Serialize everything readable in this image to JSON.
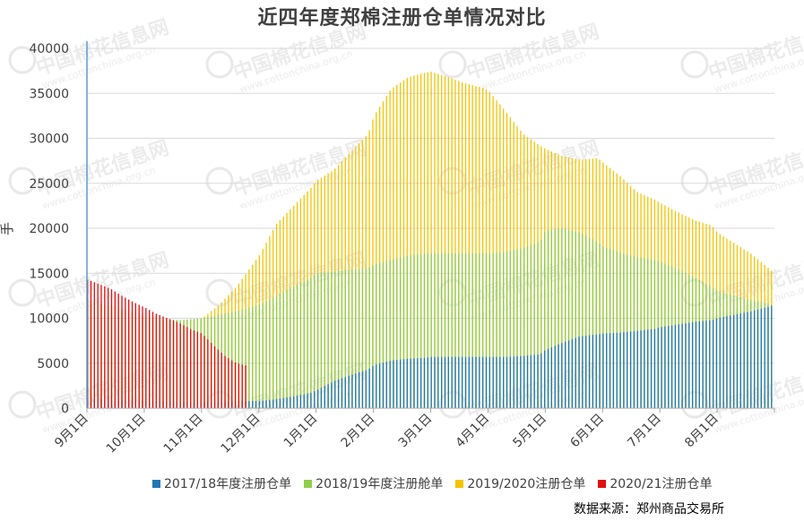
{
  "chart_data": {
    "type": "bar",
    "title": "近四年度郑棉注册仓单情况对比",
    "ylabel": "手",
    "xlabel": "",
    "ylim": [
      0,
      40000
    ],
    "yticks": [
      0,
      5000,
      10000,
      15000,
      20000,
      25000,
      30000,
      35000,
      40000
    ],
    "x_tick_labels": [
      "9月1日",
      "10月1日",
      "11月1日",
      "12月1日",
      "1月1日",
      "2月1日",
      "3月1日",
      "4月1日",
      "5月1日",
      "6月1日",
      "7月1日",
      "8月1日"
    ],
    "grid": true,
    "legend_position": "bottom",
    "source": "数据来源：郑州商品交易所",
    "colors": {
      "2017/18年度注册仓单": "#1f77b4",
      "2018/19年度注册舱单": "#8fce4a",
      "2019/2020注册仓单": "#f5c400",
      "2020/21注册仓单": "#e01010"
    },
    "x_unit": "month index (0 = Sep 1, 12 = next Sep 1)",
    "series": [
      {
        "name": "2017/18年度注册仓单",
        "points": [
          [
            0.0,
            1000
          ],
          [
            0.5,
            900
          ],
          [
            1.0,
            800
          ],
          [
            1.3,
            800
          ],
          [
            1.6,
            750
          ],
          [
            2.0,
            600
          ],
          [
            2.3,
            700
          ],
          [
            2.7,
            800
          ],
          [
            3.0,
            800
          ],
          [
            3.3,
            1000
          ],
          [
            3.6,
            1300
          ],
          [
            3.9,
            1700
          ],
          [
            4.0,
            2000
          ],
          [
            4.3,
            3000
          ],
          [
            4.6,
            3700
          ],
          [
            4.9,
            4300
          ],
          [
            5.0,
            4800
          ],
          [
            5.3,
            5300
          ],
          [
            5.6,
            5500
          ],
          [
            5.9,
            5600
          ],
          [
            6.0,
            5700
          ],
          [
            6.3,
            5700
          ],
          [
            6.6,
            5700
          ],
          [
            6.9,
            5700
          ],
          [
            7.0,
            5700
          ],
          [
            7.3,
            5700
          ],
          [
            7.6,
            5800
          ],
          [
            7.9,
            6000
          ],
          [
            8.0,
            6500
          ],
          [
            8.3,
            7300
          ],
          [
            8.6,
            8000
          ],
          [
            8.9,
            8200
          ],
          [
            9.0,
            8300
          ],
          [
            9.3,
            8400
          ],
          [
            9.6,
            8600
          ],
          [
            9.9,
            8800
          ],
          [
            10.0,
            9000
          ],
          [
            10.3,
            9300
          ],
          [
            10.6,
            9600
          ],
          [
            10.9,
            9800
          ],
          [
            11.0,
            10000
          ],
          [
            11.3,
            10400
          ],
          [
            11.6,
            10800
          ],
          [
            11.9,
            11300
          ],
          [
            12.0,
            11500
          ]
        ]
      },
      {
        "name": "2018/19年度注册舱单",
        "points": [
          [
            0.0,
            12000
          ],
          [
            0.3,
            11500
          ],
          [
            0.6,
            11000
          ],
          [
            1.0,
            10200
          ],
          [
            1.3,
            10000
          ],
          [
            1.6,
            9800
          ],
          [
            2.0,
            10000
          ],
          [
            2.3,
            10400
          ],
          [
            2.6,
            10800
          ],
          [
            3.0,
            11500
          ],
          [
            3.3,
            12500
          ],
          [
            3.6,
            13500
          ],
          [
            3.9,
            14500
          ],
          [
            4.0,
            15000
          ],
          [
            4.3,
            15200
          ],
          [
            4.6,
            15400
          ],
          [
            4.9,
            15600
          ],
          [
            5.0,
            16000
          ],
          [
            5.3,
            16500
          ],
          [
            5.6,
            17000
          ],
          [
            5.9,
            17200
          ],
          [
            6.0,
            17200
          ],
          [
            6.3,
            17200
          ],
          [
            6.6,
            17200
          ],
          [
            6.9,
            17200
          ],
          [
            7.0,
            17200
          ],
          [
            7.3,
            17400
          ],
          [
            7.6,
            17800
          ],
          [
            7.9,
            18500
          ],
          [
            8.0,
            19800
          ],
          [
            8.3,
            20000
          ],
          [
            8.6,
            19500
          ],
          [
            8.9,
            18500
          ],
          [
            9.0,
            18000
          ],
          [
            9.3,
            17300
          ],
          [
            9.6,
            16800
          ],
          [
            9.9,
            16500
          ],
          [
            10.0,
            16300
          ],
          [
            10.3,
            15500
          ],
          [
            10.6,
            14500
          ],
          [
            10.9,
            13500
          ],
          [
            11.0,
            13000
          ],
          [
            11.3,
            12500
          ],
          [
            11.6,
            12000
          ],
          [
            11.9,
            11600
          ],
          [
            12.0,
            11500
          ]
        ]
      },
      {
        "name": "2019/2020注册仓单",
        "points": [
          [
            0.0,
            11800
          ],
          [
            0.3,
            11500
          ],
          [
            0.6,
            11200
          ],
          [
            1.0,
            10300
          ],
          [
            1.3,
            9800
          ],
          [
            1.6,
            9600
          ],
          [
            2.0,
            10000
          ],
          [
            2.3,
            11500
          ],
          [
            2.6,
            13500
          ],
          [
            3.0,
            17000
          ],
          [
            3.3,
            20500
          ],
          [
            3.6,
            22500
          ],
          [
            3.9,
            24500
          ],
          [
            4.0,
            25300
          ],
          [
            4.3,
            26500
          ],
          [
            4.6,
            28500
          ],
          [
            4.9,
            30500
          ],
          [
            5.0,
            32500
          ],
          [
            5.3,
            35500
          ],
          [
            5.6,
            36800
          ],
          [
            5.9,
            37300
          ],
          [
            6.0,
            37400
          ],
          [
            6.3,
            36800
          ],
          [
            6.6,
            36100
          ],
          [
            6.9,
            35600
          ],
          [
            7.0,
            35300
          ],
          [
            7.3,
            33000
          ],
          [
            7.6,
            30500
          ],
          [
            7.9,
            29200
          ],
          [
            8.0,
            28800
          ],
          [
            8.3,
            28000
          ],
          [
            8.6,
            27600
          ],
          [
            8.9,
            27800
          ],
          [
            9.0,
            27300
          ],
          [
            9.3,
            25800
          ],
          [
            9.6,
            24000
          ],
          [
            9.9,
            23200
          ],
          [
            10.0,
            22800
          ],
          [
            10.3,
            21800
          ],
          [
            10.6,
            20900
          ],
          [
            10.9,
            20300
          ],
          [
            11.0,
            19500
          ],
          [
            11.3,
            18300
          ],
          [
            11.6,
            17100
          ],
          [
            11.9,
            15500
          ],
          [
            12.0,
            15000
          ]
        ]
      },
      {
        "name": "2020/21注册仓单",
        "points": [
          [
            0.0,
            14300
          ],
          [
            0.2,
            13800
          ],
          [
            0.4,
            13300
          ],
          [
            0.6,
            12500
          ],
          [
            0.8,
            11800
          ],
          [
            1.0,
            11200
          ],
          [
            1.2,
            10500
          ],
          [
            1.4,
            10000
          ],
          [
            1.6,
            9500
          ],
          [
            1.8,
            8800
          ],
          [
            2.0,
            8300
          ],
          [
            2.2,
            7000
          ],
          [
            2.4,
            5800
          ],
          [
            2.6,
            5000
          ],
          [
            2.8,
            4700
          ]
        ]
      }
    ]
  },
  "watermark": {
    "brand": "中国棉花信息网",
    "url": "www.cottonchina.org.cn"
  }
}
